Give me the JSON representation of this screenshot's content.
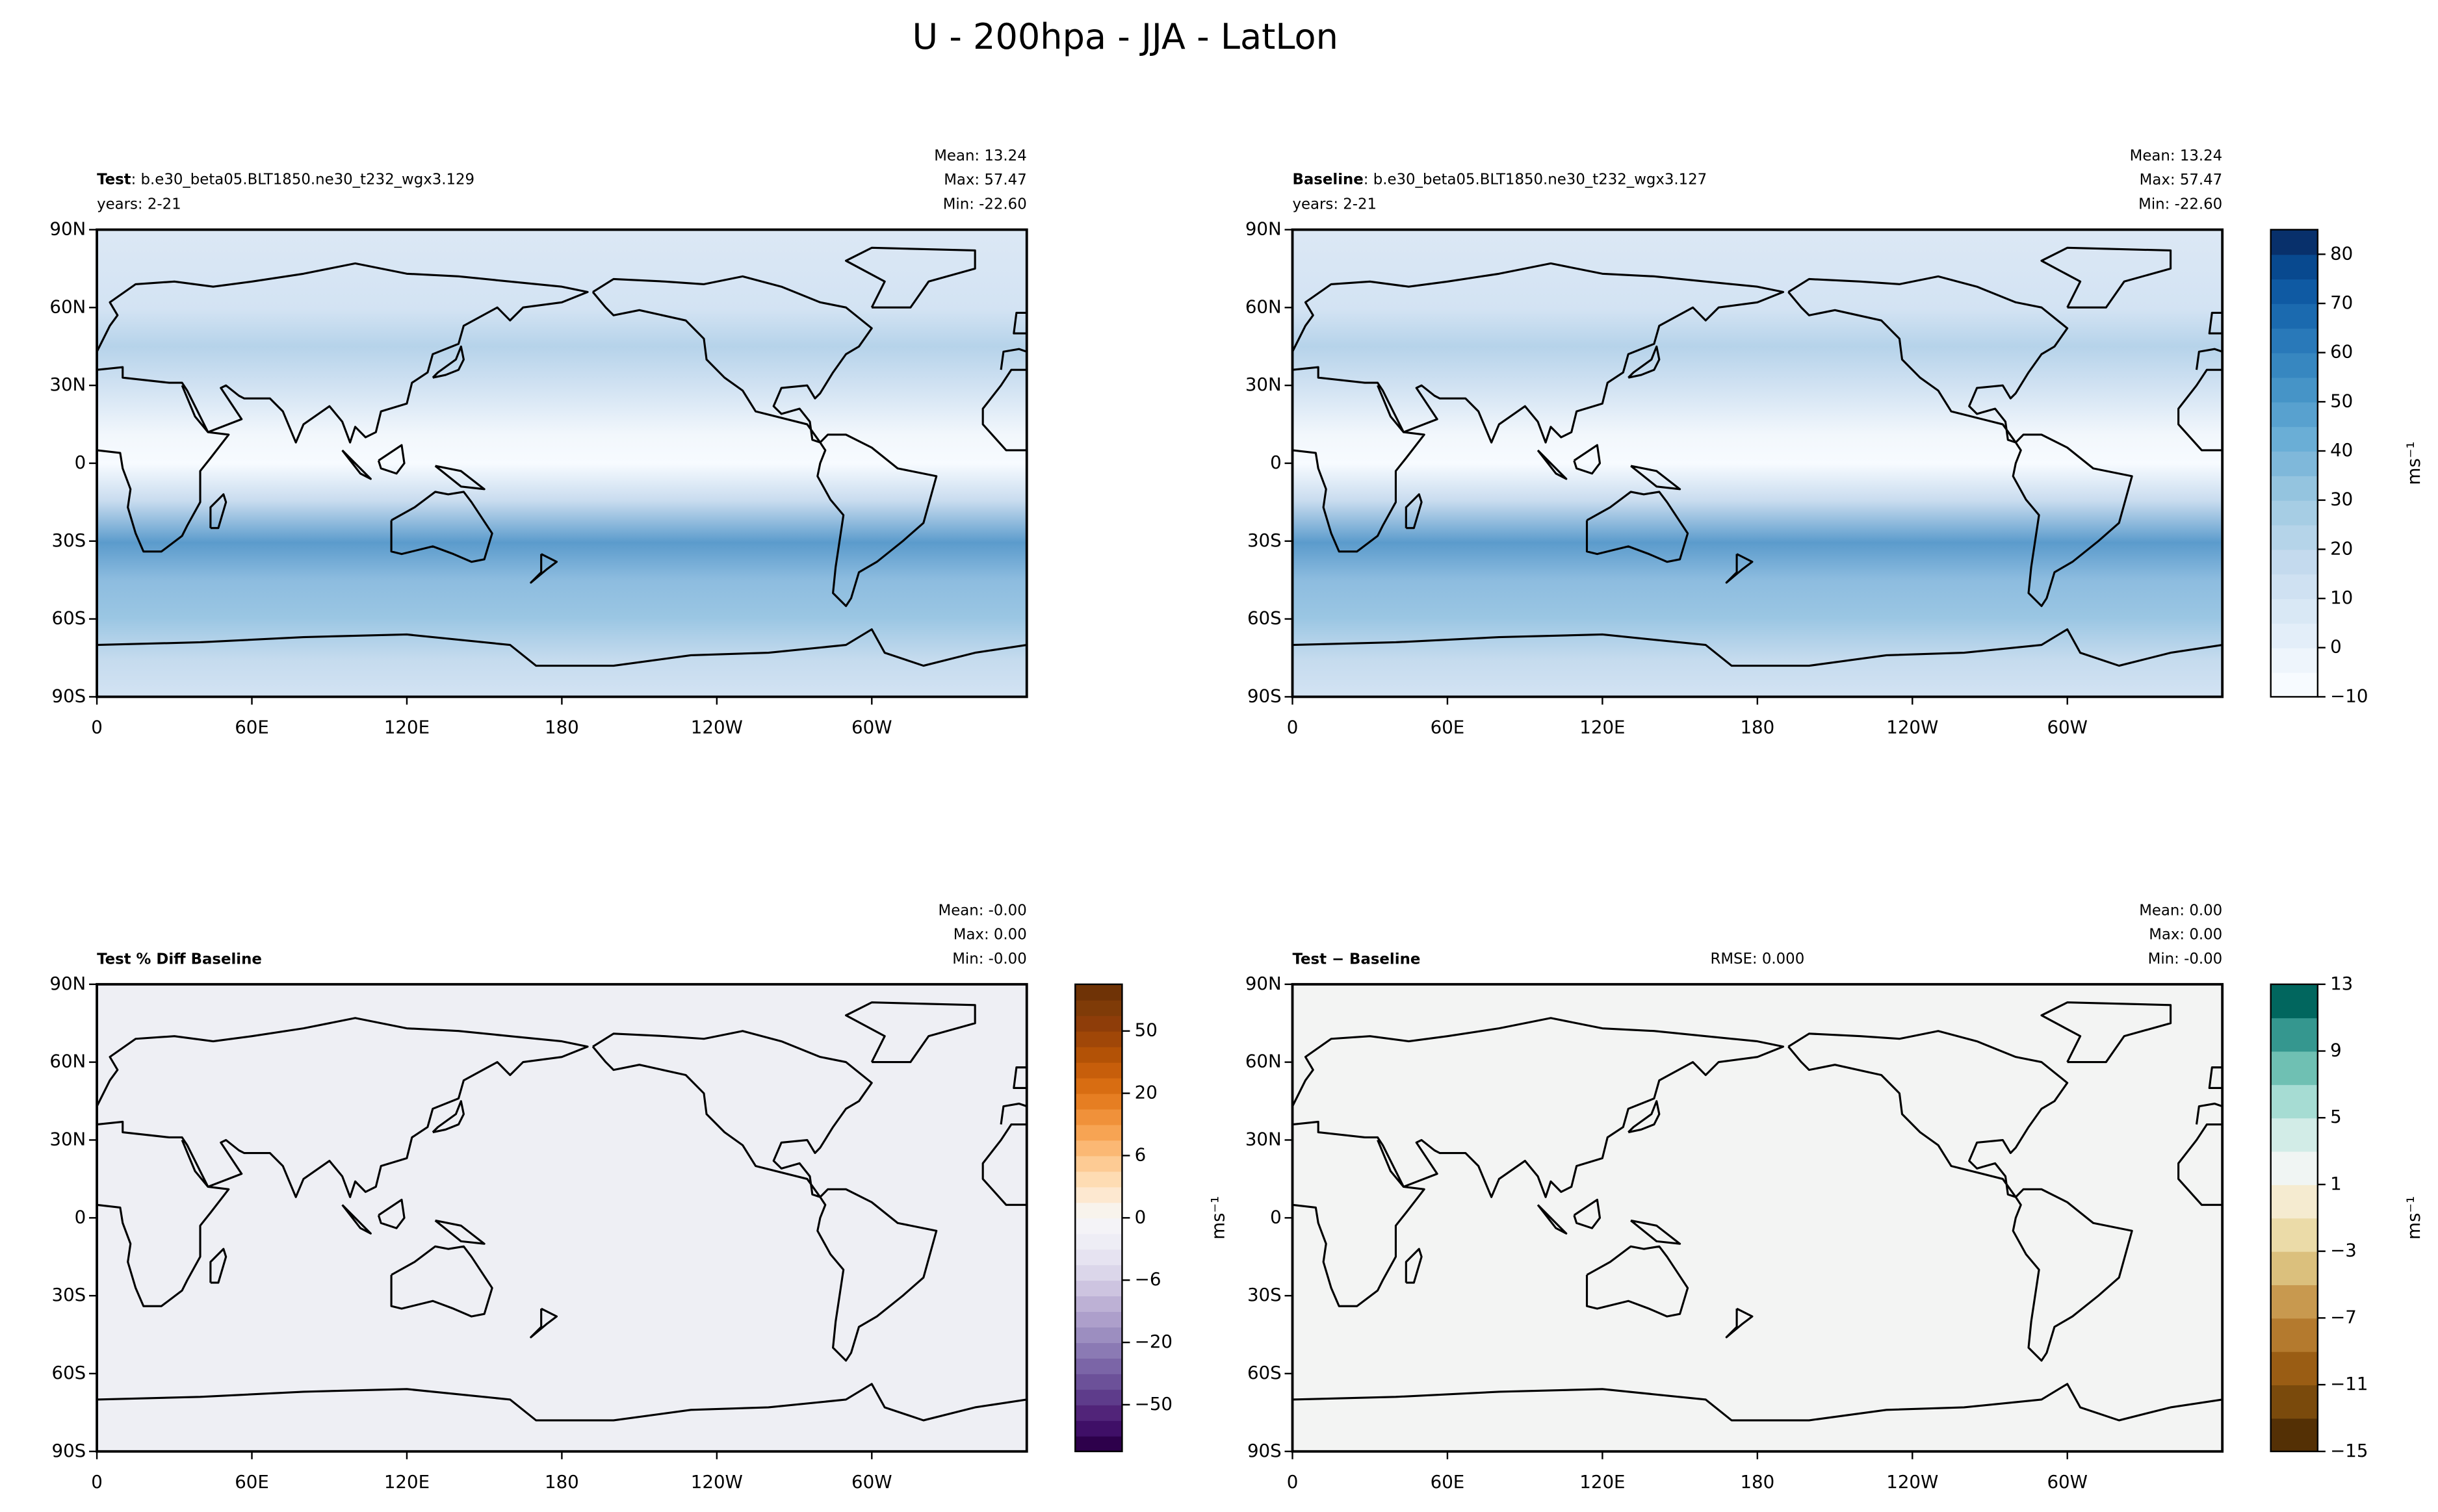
{
  "title": "U - 200hpa - JJA - LatLon",
  "chart_data": [
    {
      "type": "map",
      "title": "Test",
      "case_name": ": b.e30_beta05.BLT1850.ne30_t232_wgx3.129",
      "years": "years: 2-21",
      "stats": [
        "Mean: 13.24",
        "Max: 57.47",
        "Min: -22.60"
      ],
      "xlim": [
        0,
        360
      ],
      "xticks": [
        0,
        {
          "value": 60,
          "label": "60E"
        },
        {
          "value": 120,
          "label": "120E"
        },
        180,
        {
          "value": 240,
          "label": "120W"
        },
        {
          "value": 300,
          "label": "60W"
        }
      ],
      "ylim": [
        -90,
        90
      ],
      "yticks": [
        {
          "value": 90,
          "label": "90N"
        },
        {
          "value": 60,
          "label": "60N"
        },
        {
          "value": 30,
          "label": "30N"
        },
        0,
        {
          "value": -30,
          "label": "30S"
        },
        {
          "value": -60,
          "label": "60S"
        },
        {
          "value": -90,
          "label": "90S"
        }
      ]
    },
    {
      "type": "map",
      "title": "Baseline",
      "case_name": ": b.e30_beta05.BLT1850.ne30_t232_wgx3.127",
      "years": "years: 2-21",
      "stats": [
        "Mean: 13.24",
        "Max: 57.47",
        "Min: -22.60"
      ],
      "xlim": [
        0,
        360
      ],
      "xticks": [
        0,
        {
          "value": 60,
          "label": "60E"
        },
        {
          "value": 120,
          "label": "120E"
        },
        180,
        {
          "value": 240,
          "label": "120W"
        },
        {
          "value": 300,
          "label": "60W"
        }
      ],
      "ylim": [
        -90,
        90
      ],
      "yticks": [
        {
          "value": 90,
          "label": "90N"
        },
        {
          "value": 60,
          "label": "60N"
        },
        {
          "value": 30,
          "label": "30N"
        },
        0,
        {
          "value": -30,
          "label": "30S"
        },
        {
          "value": -60,
          "label": "60S"
        },
        {
          "value": -90,
          "label": "90S"
        }
      ],
      "colorbar": {
        "label": "ms⁻¹",
        "levels": [
          -10,
          -5,
          0,
          5,
          10,
          15,
          20,
          25,
          30,
          35,
          40,
          45,
          50,
          55,
          60,
          65,
          70,
          75,
          80,
          85
        ],
        "colors": [
          "#f7fbff",
          "#eef5fc",
          "#e3eef9",
          "#d9e8f5",
          "#cfe1f2",
          "#c4daee",
          "#b5d4e9",
          "#a6cde4",
          "#94c4df",
          "#7fb8da",
          "#6aaed6",
          "#58a1cf",
          "#4694c7",
          "#3787c0",
          "#2979b9",
          "#1b6aaf",
          "#0f5aa3",
          "#08498f",
          "#08306b"
        ],
        "ticks": [
          {
            "value": -10,
            "label": "−10"
          },
          0,
          10,
          20,
          30,
          40,
          50,
          60,
          70,
          80
        ]
      }
    },
    {
      "type": "map",
      "title": "Test % Diff Baseline",
      "stats": [
        "Mean: -0.00",
        "Max:  0.00",
        "Min: -0.00"
      ],
      "xlim": [
        0,
        360
      ],
      "xticks": [
        0,
        {
          "value": 60,
          "label": "60E"
        },
        {
          "value": 120,
          "label": "120E"
        },
        180,
        {
          "value": 240,
          "label": "120W"
        },
        {
          "value": 300,
          "label": "60W"
        }
      ],
      "ylim": [
        -90,
        90
      ],
      "yticks": [
        {
          "value": 90,
          "label": "90N"
        },
        {
          "value": 60,
          "label": "60N"
        },
        {
          "value": 30,
          "label": "30N"
        },
        0,
        {
          "value": -30,
          "label": "30S"
        },
        {
          "value": -60,
          "label": "60S"
        },
        {
          "value": -90,
          "label": "90S"
        }
      ],
      "colorbar": {
        "label": "ms⁻¹",
        "levels": [
          -100,
          -80,
          -60,
          -50,
          -40,
          -30,
          -25,
          -20,
          -15,
          -10,
          -8,
          -6,
          -4,
          -2,
          -1,
          0,
          1,
          2,
          4,
          6,
          8,
          10,
          15,
          20,
          25,
          30,
          40,
          50,
          60,
          80,
          100
        ],
        "colors": [
          "#2d004b",
          "#3f0f67",
          "#512479",
          "#5e3c8b",
          "#6c5199",
          "#7b65a7",
          "#8b7ab4",
          "#9c8ec0",
          "#ad9fcb",
          "#bdb1d5",
          "#cdc4e0",
          "#dbd6ea",
          "#e6e3f1",
          "#eeedf5",
          "#f4f3f7",
          "#f8f3ec",
          "#fde8d0",
          "#fedcb3",
          "#fdcb94",
          "#fbb874",
          "#f7a453",
          "#f0913a",
          "#e67e22",
          "#d86d12",
          "#c75e0b",
          "#b35206",
          "#a04708",
          "#8e3d09",
          "#7f3b08",
          "#6f3306"
        ],
        "ticks": [
          {
            "value": -50,
            "label": "−50"
          },
          {
            "value": -20,
            "label": "−20"
          },
          {
            "value": -6,
            "label": "−6"
          },
          0,
          6,
          20,
          50
        ]
      }
    },
    {
      "type": "map",
      "title": "Test − Baseline",
      "rmse": "RMSE: 0.000",
      "stats": [
        "Mean:  0.00",
        "Max:  0.00",
        "Min: -0.00"
      ],
      "xlim": [
        0,
        360
      ],
      "xticks": [
        0,
        {
          "value": 60,
          "label": "60E"
        },
        {
          "value": 120,
          "label": "120E"
        },
        180,
        {
          "value": 240,
          "label": "120W"
        },
        {
          "value": 300,
          "label": "60W"
        }
      ],
      "ylim": [
        -90,
        90
      ],
      "yticks": [
        {
          "value": 90,
          "label": "90N"
        },
        {
          "value": 60,
          "label": "60N"
        },
        {
          "value": 30,
          "label": "30N"
        },
        0,
        {
          "value": -30,
          "label": "30S"
        },
        {
          "value": -60,
          "label": "60S"
        },
        {
          "value": -90,
          "label": "90S"
        }
      ],
      "colorbar": {
        "label": "ms⁻¹",
        "levels": [
          -15,
          -13,
          -11,
          -9,
          -7,
          -5,
          -3,
          -1,
          1,
          3,
          5,
          7,
          9,
          11,
          13
        ],
        "colors": [
          "#543005",
          "#7a4a0c",
          "#9a5d14",
          "#b47a2e",
          "#c8994f",
          "#dbc07d",
          "#ebdba8",
          "#f5ebd0",
          "#f0f5f3",
          "#d2ece7",
          "#a6dcd3",
          "#6fc0b3",
          "#35978f",
          "#01665e"
        ],
        "ticks": [
          {
            "value": -15,
            "label": "−15"
          },
          {
            "value": -11,
            "label": "−11"
          },
          {
            "value": -7,
            "label": "−7"
          },
          {
            "value": -3,
            "label": "−3"
          },
          1,
          5,
          9,
          13
        ]
      }
    }
  ]
}
